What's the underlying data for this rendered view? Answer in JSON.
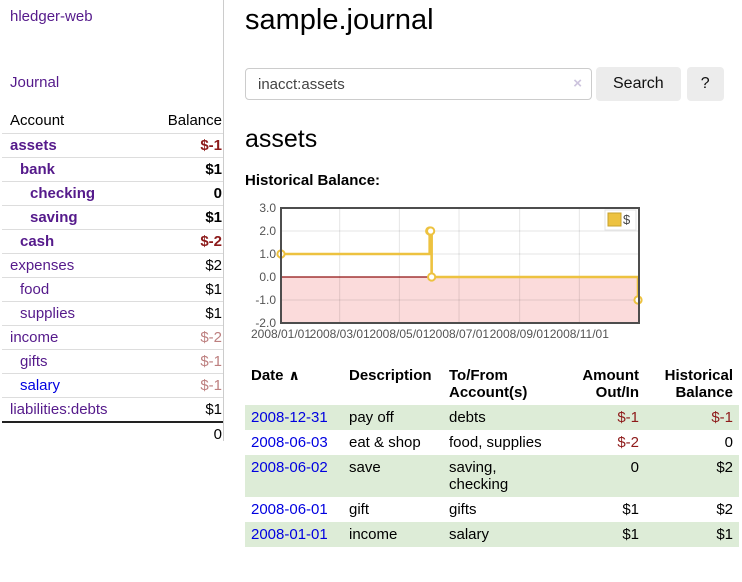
{
  "app": {
    "title": "hledger-web"
  },
  "sidebar": {
    "journal_link": "Journal",
    "accounts_table": {
      "account_header": "Account",
      "balance_header": "Balance",
      "rows": [
        {
          "account": "assets",
          "balance": "$-1",
          "depth": 1,
          "bold": true,
          "balance_tone": "neg-strong",
          "link_tone": "purple"
        },
        {
          "account": "bank",
          "balance": "$1",
          "depth": 2,
          "bold": true,
          "balance_tone": "normal",
          "link_tone": "purple"
        },
        {
          "account": "checking",
          "balance": "0",
          "depth": 3,
          "bold": true,
          "balance_tone": "normal",
          "link_tone": "purple"
        },
        {
          "account": "saving",
          "balance": "$1",
          "depth": 3,
          "bold": true,
          "balance_tone": "normal",
          "link_tone": "purple"
        },
        {
          "account": "cash",
          "balance": "$-2",
          "depth": 2,
          "bold": true,
          "balance_tone": "neg-strong",
          "link_tone": "purple"
        },
        {
          "account": "expenses",
          "balance": "$2",
          "depth": 1,
          "bold": false,
          "balance_tone": "normal",
          "link_tone": "purple"
        },
        {
          "account": "food",
          "balance": "$1",
          "depth": 2,
          "bold": false,
          "balance_tone": "normal",
          "link_tone": "purple"
        },
        {
          "account": "supplies",
          "balance": "$1",
          "depth": 2,
          "bold": false,
          "balance_tone": "normal",
          "link_tone": "purple"
        },
        {
          "account": "income",
          "balance": "$-2",
          "depth": 1,
          "bold": false,
          "balance_tone": "neg-light",
          "link_tone": "purple"
        },
        {
          "account": "gifts",
          "balance": "$-1",
          "depth": 2,
          "bold": false,
          "balance_tone": "neg-light",
          "link_tone": "purple"
        },
        {
          "account": "salary",
          "balance": "$-1",
          "depth": 2,
          "bold": false,
          "balance_tone": "neg-light",
          "link_tone": "blue"
        },
        {
          "account": "liabilities:debts",
          "balance": "$1",
          "depth": 1,
          "bold": false,
          "balance_tone": "normal",
          "link_tone": "purple"
        }
      ],
      "total": "0"
    }
  },
  "main": {
    "title": "sample.journal",
    "search": {
      "value": "inacct:assets",
      "clear_icon": "×",
      "search_button": "Search",
      "help_button": "?"
    },
    "account_heading": "assets",
    "chart_label": "Historical Balance:"
  },
  "chart_data": {
    "type": "line",
    "title": "Historical Balance",
    "style": "step",
    "series": [
      {
        "name": "$",
        "color": "#edc240",
        "points": [
          {
            "date": "2008/01/01",
            "day": 0,
            "value": 1
          },
          {
            "date": "2008/06/01",
            "day": 152,
            "value": 2
          },
          {
            "date": "2008/06/02",
            "day": 153,
            "value": 2
          },
          {
            "date": "2008/06/03",
            "day": 154,
            "value": 0
          },
          {
            "date": "2008/12/31",
            "day": 365,
            "value": -1
          }
        ]
      }
    ],
    "xlim_days": [
      0,
      366
    ],
    "xticks": [
      {
        "label": "2008/01/01",
        "day": 0
      },
      {
        "label": "2008/03/01",
        "day": 60
      },
      {
        "label": "2008/05/01",
        "day": 121
      },
      {
        "label": "2008/07/01",
        "day": 182
      },
      {
        "label": "2008/09/01",
        "day": 244
      },
      {
        "label": "2008/11/01",
        "day": 305
      }
    ],
    "yticks": [
      3.0,
      2.0,
      1.0,
      0.0,
      -1.0,
      -2.0
    ],
    "ylim": [
      -2,
      3
    ],
    "grid": true,
    "zero_line_color": "#8f1010",
    "negative_fill": "#fbdbdb",
    "legend": {
      "label": "$",
      "position": "top-right"
    }
  },
  "register_table": {
    "headers": {
      "date": "Date",
      "sort_icon": "∧",
      "description": "Description",
      "accounts": "To/From Account(s)",
      "amount": "Amount Out/In",
      "balance": "Historical Balance"
    },
    "rows": [
      {
        "date": "2008-12-31",
        "description": "pay off",
        "accounts": "debts",
        "amount": "$-1",
        "balance": "$-1"
      },
      {
        "date": "2008-06-03",
        "description": "eat & shop",
        "accounts": "food, supplies",
        "amount": "$-2",
        "balance": "0"
      },
      {
        "date": "2008-06-02",
        "description": "save",
        "accounts": "saving, checking",
        "amount": "0",
        "balance": "$2"
      },
      {
        "date": "2008-06-01",
        "description": "gift",
        "accounts": "gifts",
        "amount": "$1",
        "balance": "$2"
      },
      {
        "date": "2008-01-01",
        "description": "income",
        "accounts": "salary",
        "amount": "$1",
        "balance": "$1"
      }
    ]
  },
  "colors": {
    "accent_purple": "#551a8b",
    "link_blue": "#0000e0",
    "negative_strong": "#8c1a1a",
    "negative_light": "#bd7f7f",
    "row_green": "#ddecd7",
    "chart_series": "#edc240",
    "chart_negative_area": "#fbdbdb"
  }
}
